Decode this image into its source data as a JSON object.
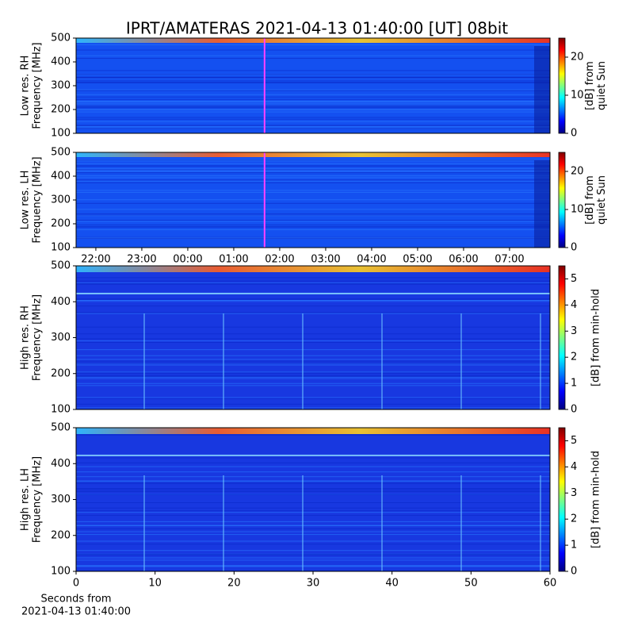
{
  "chart_data": [
    {
      "type": "heatmap",
      "title": "IPRT/AMATERAS 2021-04-13 01:40:00 [UT]   08bit",
      "ylabel": [
        "Low res. RH",
        "Frequency [MHz]"
      ],
      "ylim": [
        100,
        500
      ],
      "yticks": [
        100,
        200,
        300,
        400,
        500
      ],
      "xlim": [
        21.57,
        31.88
      ],
      "marker_x": 25.67,
      "marker_color": "#ff40ff",
      "colorbar_label": [
        "[dB] from",
        "quiet Sun"
      ],
      "clim": [
        0,
        25
      ],
      "cticks": [
        0,
        10,
        20
      ]
    },
    {
      "type": "heatmap",
      "ylabel": [
        "Low res. LH",
        "Frequency [MHz]"
      ],
      "ylim": [
        100,
        500
      ],
      "yticks": [
        100,
        200,
        300,
        400,
        500
      ],
      "xlim": [
        21.57,
        31.88
      ],
      "xticks": [
        {
          "value": 22,
          "label": "22:00"
        },
        {
          "value": 23,
          "label": "23:00"
        },
        {
          "value": 24,
          "label": "00:00"
        },
        {
          "value": 25,
          "label": "01:00"
        },
        {
          "value": 26,
          "label": "02:00"
        },
        {
          "value": 27,
          "label": "03:00"
        },
        {
          "value": 28,
          "label": "04:00"
        },
        {
          "value": 29,
          "label": "05:00"
        },
        {
          "value": 30,
          "label": "06:00"
        },
        {
          "value": 31,
          "label": "07:00"
        }
      ],
      "marker_x": 25.67,
      "marker_color": "#ff40ff",
      "colorbar_label": [
        "[dB] from",
        "quiet Sun"
      ],
      "clim": [
        0,
        25
      ],
      "cticks": [
        0,
        10,
        20
      ]
    },
    {
      "type": "heatmap",
      "ylabel": [
        "High res. RH",
        "Frequency [MHz]"
      ],
      "ylim": [
        100,
        500
      ],
      "yticks": [
        100,
        200,
        300,
        400,
        500
      ],
      "xlim": [
        0,
        60
      ],
      "colorbar_label": [
        "[dB] from min-hold"
      ],
      "clim": [
        0,
        5.5
      ],
      "cticks": [
        0,
        1,
        2,
        3,
        4,
        5
      ]
    },
    {
      "type": "heatmap",
      "ylabel": [
        "High res. LH",
        "Frequency [MHz]"
      ],
      "ylim": [
        100,
        500
      ],
      "yticks": [
        100,
        200,
        300,
        400,
        500
      ],
      "xlim": [
        0,
        60
      ],
      "xticks": [
        0,
        10,
        20,
        30,
        40,
        50,
        60
      ],
      "xlabel": [
        "Seconds from",
        "2021-04-13 01:40:00"
      ],
      "colorbar_label": [
        "[dB] from min-hold"
      ],
      "clim": [
        0,
        5.5
      ],
      "cticks": [
        0,
        1,
        2,
        3,
        4,
        5
      ]
    }
  ]
}
